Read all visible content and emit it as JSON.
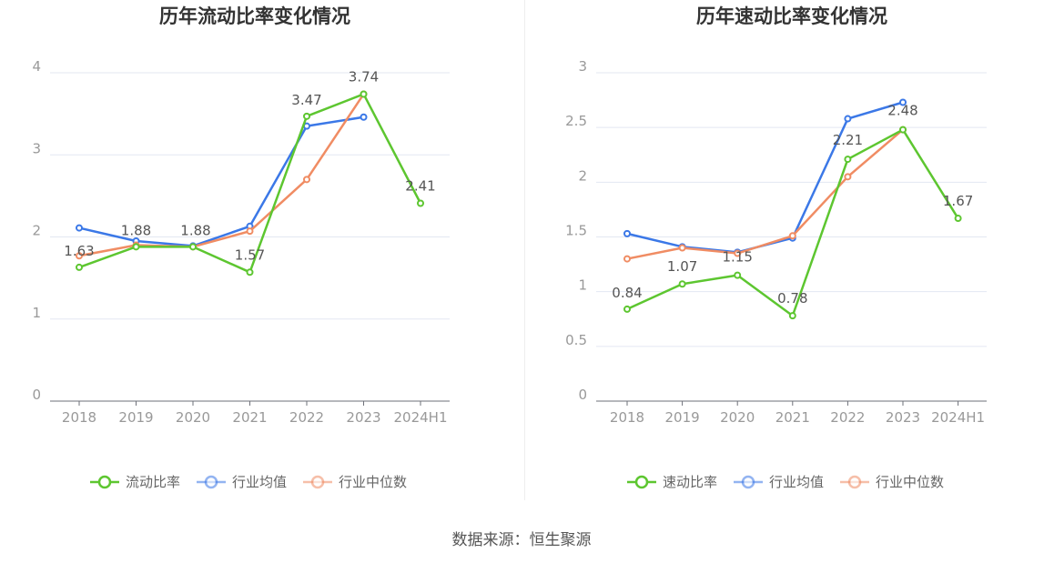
{
  "colors": {
    "primary": "#5dc630",
    "avg": "#3b78e7",
    "median": "#f08c63",
    "grid": "#e3e7f2",
    "axis": "#6e7079"
  },
  "source_text": "数据来源：恒生聚源",
  "chart_data": [
    {
      "type": "line",
      "title": "历年流动比率变化情况",
      "categories": [
        "2018",
        "2019",
        "2020",
        "2021",
        "2022",
        "2023",
        "2024H1"
      ],
      "ylim": [
        0,
        4
      ],
      "yticks": [
        "0",
        "1",
        "2",
        "3",
        "4"
      ],
      "grid": true,
      "legend_position": "bottom",
      "series": [
        {
          "name": "流动比率",
          "values": [
            1.63,
            1.88,
            1.88,
            1.57,
            3.47,
            3.74,
            2.41
          ],
          "labels": [
            "1.63",
            "1.88",
            "1.88",
            "1.57",
            "3.47",
            "3.74",
            "2.41"
          ]
        },
        {
          "name": "行业均值",
          "values": [
            2.11,
            1.95,
            1.89,
            2.13,
            3.35,
            3.46,
            null
          ]
        },
        {
          "name": "行业中位数",
          "values": [
            1.77,
            1.9,
            1.88,
            2.07,
            2.7,
            3.74,
            null
          ]
        }
      ]
    },
    {
      "type": "line",
      "title": "历年速动比率变化情况",
      "categories": [
        "2018",
        "2019",
        "2020",
        "2021",
        "2022",
        "2023",
        "2024H1"
      ],
      "ylim": [
        0,
        3
      ],
      "yticks": [
        "0",
        "0.5",
        "1",
        "1.5",
        "2",
        "2.5",
        "3"
      ],
      "grid": true,
      "legend_position": "bottom",
      "series": [
        {
          "name": "速动比率",
          "values": [
            0.84,
            1.07,
            1.15,
            0.78,
            2.21,
            2.48,
            1.67
          ],
          "labels": [
            "0.84",
            "1.07",
            "1.15",
            "0.78",
            "2.21",
            "2.48",
            "1.67"
          ]
        },
        {
          "name": "行业均值",
          "values": [
            1.53,
            1.41,
            1.36,
            1.49,
            2.58,
            2.73,
            null
          ]
        },
        {
          "name": "行业中位数",
          "values": [
            1.3,
            1.4,
            1.35,
            1.51,
            2.05,
            2.48,
            null
          ]
        }
      ]
    }
  ]
}
